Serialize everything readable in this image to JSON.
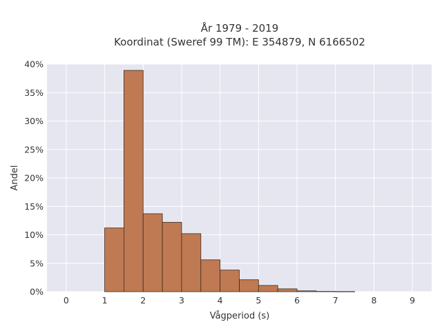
{
  "chart_data": {
    "type": "bar",
    "title_lines": [
      "År 1979 - 2019",
      "Koordinat (Sweref 99 TM): E 354879, N 6166502"
    ],
    "xlabel": "Vågperiod (s)",
    "ylabel": "Andel",
    "xlim": [
      -0.5,
      9.5
    ],
    "ylim": [
      0,
      40
    ],
    "x_ticks": [
      0,
      1,
      2,
      3,
      4,
      5,
      6,
      7,
      8,
      9
    ],
    "x_tick_labels": [
      "0",
      "1",
      "2",
      "3",
      "4",
      "5",
      "6",
      "7",
      "8",
      "9"
    ],
    "y_ticks": [
      0,
      5,
      10,
      15,
      20,
      25,
      30,
      35,
      40
    ],
    "y_tick_labels": [
      "0%",
      "5%",
      "10%",
      "15%",
      "20%",
      "25%",
      "30%",
      "35%",
      "40%"
    ],
    "grid": true,
    "bin_width": 0.5,
    "bins": [
      {
        "start": 1.0,
        "end": 1.5,
        "value": 11.2
      },
      {
        "start": 1.5,
        "end": 2.0,
        "value": 38.9
      },
      {
        "start": 2.0,
        "end": 2.5,
        "value": 13.7
      },
      {
        "start": 2.5,
        "end": 3.0,
        "value": 12.2
      },
      {
        "start": 3.0,
        "end": 3.5,
        "value": 10.2
      },
      {
        "start": 3.5,
        "end": 4.0,
        "value": 5.6
      },
      {
        "start": 4.0,
        "end": 4.5,
        "value": 3.8
      },
      {
        "start": 4.5,
        "end": 5.0,
        "value": 2.1
      },
      {
        "start": 5.0,
        "end": 5.5,
        "value": 1.1
      },
      {
        "start": 5.5,
        "end": 6.0,
        "value": 0.5
      },
      {
        "start": 6.0,
        "end": 6.5,
        "value": 0.15
      },
      {
        "start": 6.5,
        "end": 7.0,
        "value": 0.05
      },
      {
        "start": 7.0,
        "end": 7.5,
        "value": 0.03
      }
    ],
    "colors": {
      "bar_fill": "#bf7a53",
      "bar_edge": "#3a2a22",
      "plot_bg": "#e5e6f0",
      "grid": "#ffffff"
    }
  }
}
